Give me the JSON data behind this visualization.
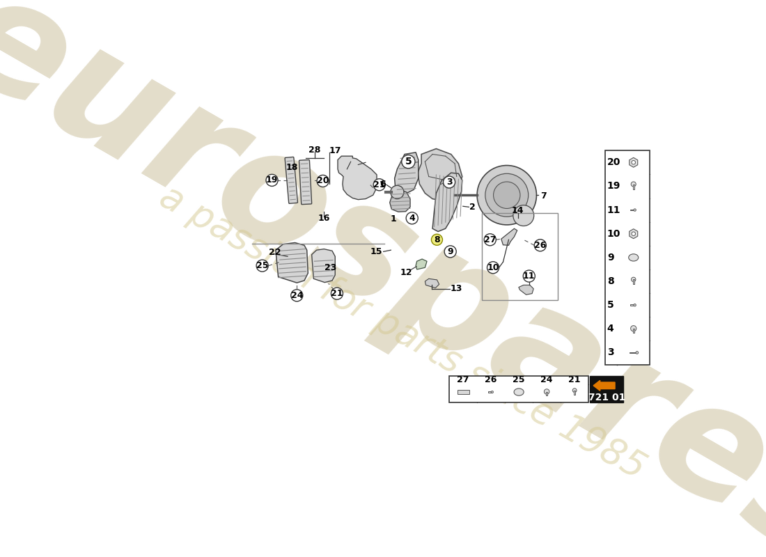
{
  "background_color": "#ffffff",
  "part_numbers_right_panel": [
    20,
    19,
    11,
    10,
    9,
    8,
    5,
    4,
    3
  ],
  "bottom_strip_numbers": [
    27,
    26,
    25,
    24,
    21
  ],
  "part_code": "721 01",
  "watermark_text": "eurospares",
  "watermark_subtext": "a passion for parts since 1985",
  "watermark_color_main": "#c8bc96",
  "watermark_color_sub": "#d4c890",
  "watermark_alpha": 0.5,
  "line_color": "#333333",
  "part_fill": "#e8e8e8",
  "part_edge": "#444444",
  "circle_label_fontsize": 9,
  "plain_label_fontsize": 9
}
